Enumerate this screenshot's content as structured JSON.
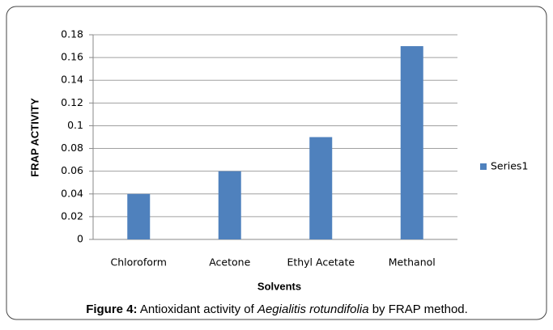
{
  "chart_data": {
    "type": "bar",
    "categories": [
      "Chloroform",
      "Acetone",
      "Ethyl Acetate",
      "Methanol"
    ],
    "series": [
      {
        "name": "Series1",
        "color": "#4f81bd",
        "values": [
          0.04,
          0.06,
          0.09,
          0.17
        ]
      }
    ],
    "x_label": "Solvents",
    "y_label": "FRAP ACTIVITY",
    "ylim": [
      0,
      0.18
    ],
    "yticks": [
      0,
      0.02,
      0.04,
      0.06,
      0.08,
      0.1,
      0.12,
      0.14,
      0.16,
      0.18
    ],
    "grid": true,
    "legend": "right"
  },
  "caption": {
    "label": "Figure 4:",
    "text_before": " Antioxidant activity of ",
    "species": "Aegialitis rotundifolia",
    "text_after": " by FRAP method."
  }
}
